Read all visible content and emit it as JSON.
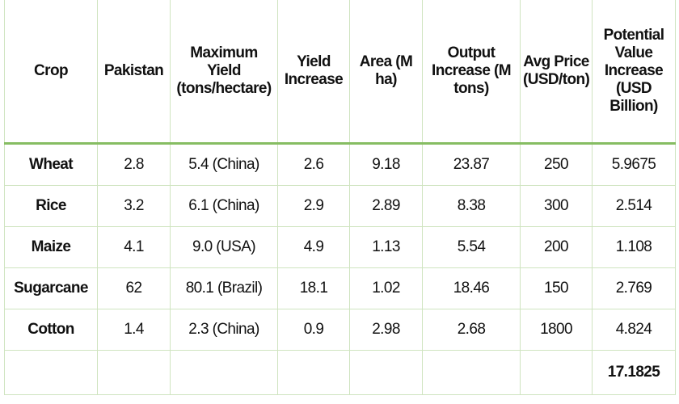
{
  "table": {
    "headers": [
      "Crop",
      "Pakistan",
      "Maximum Yield (tons/hectare)",
      "Yield Increase",
      "Area (M ha)",
      "Output Increase (M tons)",
      "Avg Price (USD/ton)",
      "Potential Value Increase (USD Billion)"
    ],
    "rows": [
      [
        "Wheat",
        "2.8",
        "5.4 (China)",
        "2.6",
        "9.18",
        "23.87",
        "250",
        "5.9675"
      ],
      [
        "Rice",
        "3.2",
        "6.1 (China)",
        "2.9",
        "2.89",
        "8.38",
        "300",
        "2.514"
      ],
      [
        "Maize",
        "4.1",
        "9.0 (USA)",
        "4.9",
        "1.13",
        "5.54",
        "200",
        "1.108"
      ],
      [
        "Sugarcane",
        "62",
        "80.1 (Brazil)",
        "18.1",
        "1.02",
        "18.46",
        "150",
        "2.769"
      ],
      [
        "Cotton",
        "1.4",
        "2.3 (China)",
        "0.9",
        "2.98",
        "2.68",
        "1800",
        "4.824"
      ]
    ],
    "total": "17.1825"
  }
}
